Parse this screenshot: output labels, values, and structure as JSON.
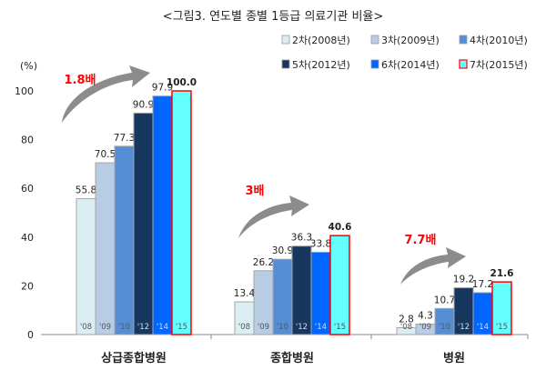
{
  "chart_data": {
    "type": "bar",
    "title": "<그림3. 연도별 종별 1등급 의료기관 비율>",
    "ylabel": "(%)",
    "ylim": [
      0,
      100
    ],
    "yticks": [
      0,
      20,
      40,
      60,
      80,
      100
    ],
    "grid": false,
    "legend_placement": "top-right",
    "categories": [
      "상급종합병원",
      "종합병원",
      "병원"
    ],
    "bar_labels": [
      "'08",
      "'09",
      "'10",
      "'12",
      "'14",
      "'15"
    ],
    "series": [
      {
        "name": "2차(2008년)",
        "color": "#daeef3",
        "values": [
          55.8,
          13.4,
          2.8
        ]
      },
      {
        "name": "3차(2009년)",
        "color": "#b8cce4",
        "values": [
          70.5,
          26.2,
          4.3
        ]
      },
      {
        "name": "4차(2010년)",
        "color": "#558ed5",
        "values": [
          77.3,
          30.9,
          10.7
        ]
      },
      {
        "name": "5차(2012년)",
        "color": "#17375e",
        "values": [
          90.9,
          36.3,
          19.2
        ]
      },
      {
        "name": "6차(2014년)",
        "color": "#0066ff",
        "values": [
          97.9,
          33.8,
          17.2
        ]
      },
      {
        "name": "7차(2015년)",
        "color": "#66ffff",
        "border": "#ff0000",
        "values": [
          100.0,
          40.6,
          21.6
        ]
      }
    ],
    "annotations": [
      "1.8배",
      "3배",
      "7.7배"
    ],
    "annotation_color": "#ff0000"
  }
}
